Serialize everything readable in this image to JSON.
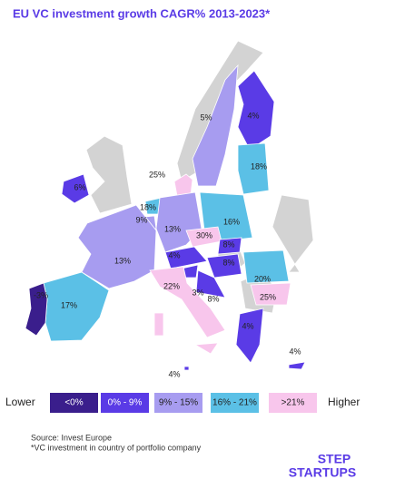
{
  "header": {
    "title": "EU VC investment growth CAGR% 2013-2023*"
  },
  "map": {
    "labels": [
      "5%",
      "4%",
      "18%",
      "25%",
      "6%",
      "18%",
      "9%",
      "13%",
      "16%",
      "30%",
      "4%",
      "8%",
      "8%",
      "3%",
      "8%",
      "13%",
      "22%",
      "20%",
      "25%",
      "17%",
      "-3%",
      "4%",
      "4%",
      "4%"
    ]
  },
  "legend": {
    "low": "Lower",
    "high": "Higher",
    "items": [
      {
        "label": "<0%",
        "color": "#3a1e8c"
      },
      {
        "label": "0% - 9%",
        "color": "#5a3be6"
      },
      {
        "label": "9% - 15%",
        "color": "#a79cf0"
      },
      {
        "label": "16% - 21%",
        "color": "#5bc0e6"
      },
      {
        "label": ">21%",
        "color": "#f8c6ec"
      }
    ]
  },
  "footer": {
    "source": "Source: Invest Europe",
    "note": "*VC investment in country of portfolio company",
    "logo_top": "STEP",
    "logo_bottom": "STARTUPS"
  }
}
